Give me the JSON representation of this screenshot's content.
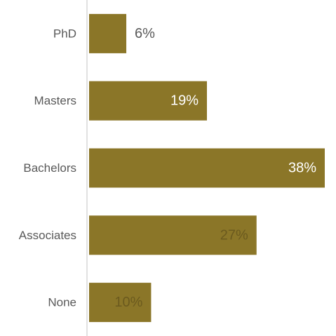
{
  "chart_data": {
    "type": "bar",
    "orientation": "horizontal",
    "categories": [
      "PhD",
      "Masters",
      "Bachelors",
      "Associates",
      "None"
    ],
    "values": [
      6,
      19,
      38,
      27,
      10
    ],
    "value_labels": [
      "6%",
      "19%",
      "38%",
      "27%",
      "10%"
    ],
    "title": "",
    "xlabel": "",
    "ylabel": "",
    "xlim": [
      0,
      38
    ],
    "grid": false,
    "legend": "none",
    "colors": {
      "bar": "#8B7628",
      "axis": "#D9D9D9",
      "category_text": "#595959",
      "label_outside": "#595959",
      "label_inside_light": "#FFFFFF",
      "label_inside_dark": "#6B5A1E"
    },
    "label_styles": [
      "outside",
      "inside-light",
      "inside-light",
      "inside-dark",
      "inside-dark"
    ]
  }
}
